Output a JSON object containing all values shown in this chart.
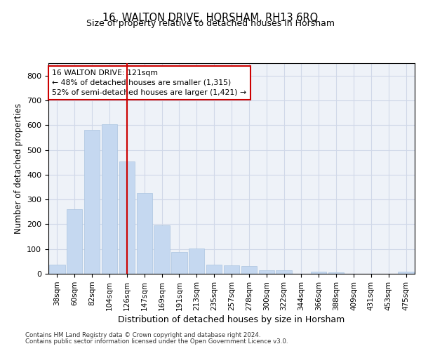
{
  "title": "16, WALTON DRIVE, HORSHAM, RH13 6RQ",
  "subtitle": "Size of property relative to detached houses in Horsham",
  "xlabel": "Distribution of detached houses by size in Horsham",
  "ylabel": "Number of detached properties",
  "categories": [
    "38sqm",
    "60sqm",
    "82sqm",
    "104sqm",
    "126sqm",
    "147sqm",
    "169sqm",
    "191sqm",
    "213sqm",
    "235sqm",
    "257sqm",
    "278sqm",
    "300sqm",
    "322sqm",
    "344sqm",
    "366sqm",
    "388sqm",
    "409sqm",
    "431sqm",
    "453sqm",
    "475sqm"
  ],
  "values": [
    38,
    262,
    580,
    603,
    452,
    327,
    196,
    88,
    103,
    38,
    35,
    30,
    13,
    13,
    0,
    8,
    5,
    0,
    0,
    0,
    8
  ],
  "bar_color": "#c5d8f0",
  "bar_edge_color": "#aac4e0",
  "vline_color": "#cc0000",
  "vline_x": 4,
  "annotation_text": "16 WALTON DRIVE: 121sqm\n← 48% of detached houses are smaller (1,315)\n52% of semi-detached houses are larger (1,421) →",
  "annotation_box_color": "white",
  "annotation_box_edge_color": "#cc0000",
  "ylim": [
    0,
    850
  ],
  "yticks": [
    0,
    100,
    200,
    300,
    400,
    500,
    600,
    700,
    800
  ],
  "grid_color": "#d0d8e8",
  "background_color": "#eef2f8",
  "footnote1": "Contains HM Land Registry data © Crown copyright and database right 2024.",
  "footnote2": "Contains public sector information licensed under the Open Government Licence v3.0."
}
